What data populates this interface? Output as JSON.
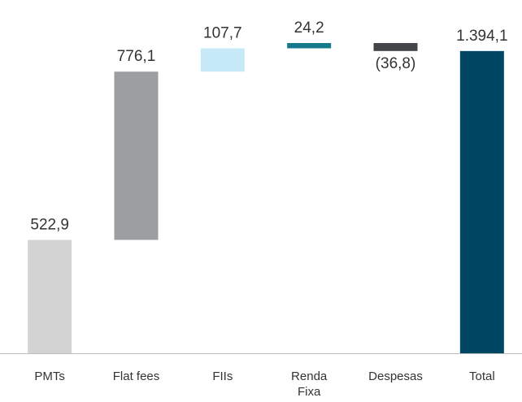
{
  "chart_data": {
    "type": "waterfall",
    "categories": [
      "PMTs",
      "Flat fees",
      "FIIs",
      "Renda Fixa",
      "Despesas",
      "Total"
    ],
    "values": [
      522.9,
      776.1,
      107.7,
      24.2,
      -36.8,
      1394.1
    ],
    "value_labels": [
      "522,9",
      "776,1",
      "107,7",
      "24,2",
      "(36,8)",
      "1.394,1"
    ],
    "is_total": [
      false,
      false,
      false,
      false,
      false,
      true
    ],
    "colors": [
      "#d3d3d4",
      "#9d9ea1",
      "#c6eaf7",
      "#14798a",
      "#444548",
      "#004763"
    ]
  }
}
